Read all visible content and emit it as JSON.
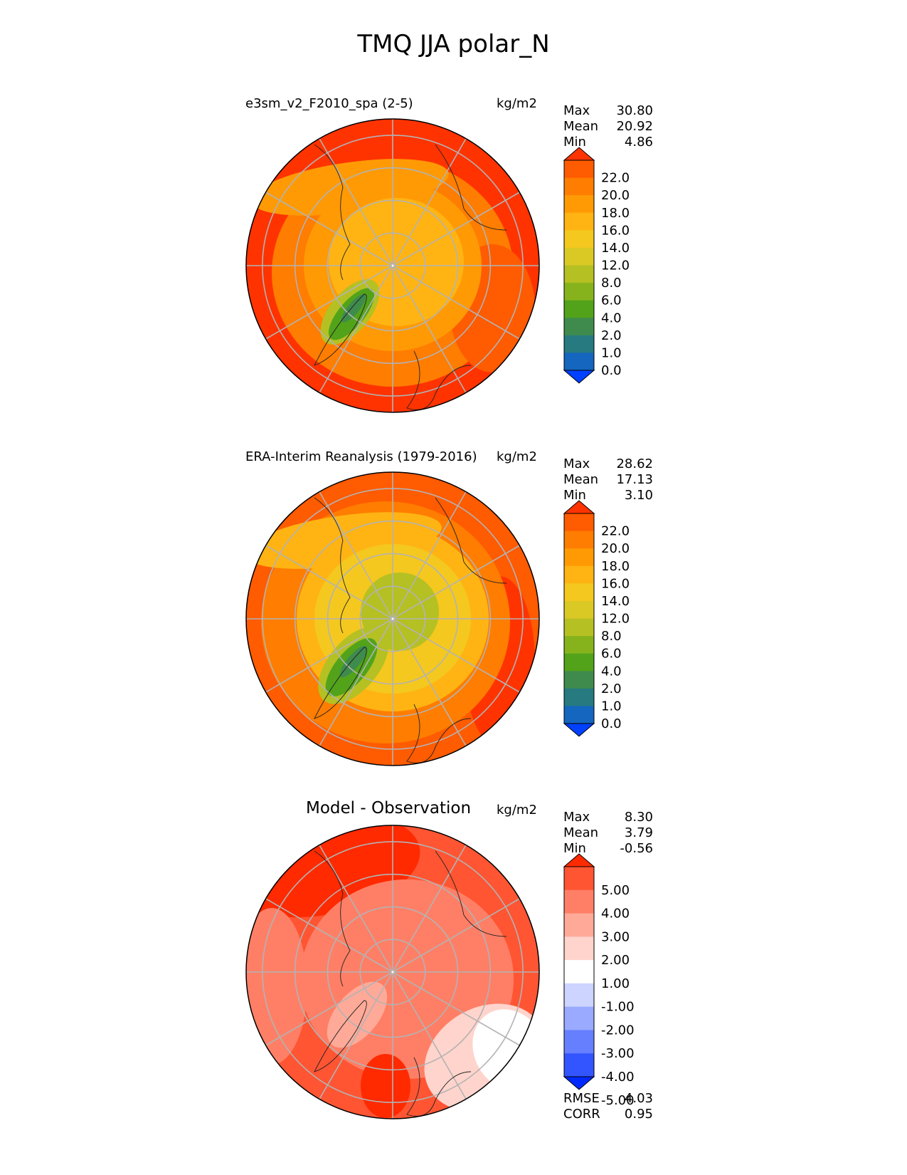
{
  "figure": {
    "title": "TMQ JJA polar_N"
  },
  "panels": [
    {
      "id": "model",
      "title": "e3sm_v2_F2010_spa (2-5)",
      "units": "kg/m2",
      "stats": {
        "max_label": "Max",
        "max": "30.80",
        "mean_label": "Mean",
        "mean": "20.92",
        "min_label": "Min",
        "min": "4.86"
      },
      "colorbar": {
        "labels": [
          "22.0",
          "20.0",
          "18.0",
          "16.0",
          "14.0",
          "12.0",
          "8.0",
          "6.0",
          "4.0",
          "2.0",
          "1.0",
          "0.0"
        ],
        "colors": [
          "#ff3300",
          "#ff5b00",
          "#ff7d00",
          "#ff9a05",
          "#ffb413",
          "#f4c81f",
          "#dac825",
          "#b5c023",
          "#86b31c",
          "#52a31a",
          "#3f8b4d",
          "#267a80",
          "#1466bf",
          "#0040ff"
        ]
      }
    },
    {
      "id": "obs",
      "title": "ERA-Interim Reanalysis (1979-2016)",
      "units": "kg/m2",
      "stats": {
        "max_label": "Max",
        "max": "28.62",
        "mean_label": "Mean",
        "mean": "17.13",
        "min_label": "Min",
        "min": "3.10"
      },
      "colorbar": {
        "labels": [
          "22.0",
          "20.0",
          "18.0",
          "16.0",
          "14.0",
          "12.0",
          "8.0",
          "6.0",
          "4.0",
          "2.0",
          "1.0",
          "0.0"
        ],
        "colors": [
          "#ff3300",
          "#ff5b00",
          "#ff7d00",
          "#ff9a05",
          "#ffb413",
          "#f4c81f",
          "#dac825",
          "#b5c023",
          "#86b31c",
          "#52a31a",
          "#3f8b4d",
          "#267a80",
          "#1466bf",
          "#0040ff"
        ]
      }
    },
    {
      "id": "diff",
      "title": "Model - Observation",
      "units": "kg/m2",
      "stats": {
        "max_label": "Max",
        "max": "8.30",
        "mean_label": "Mean",
        "mean": "3.79",
        "min_label": "Min",
        "min": "-0.56"
      },
      "metrics": {
        "rmse_label": "RMSE",
        "rmse": "4.03",
        "corr_label": "CORR",
        "corr": "0.95"
      },
      "colorbar": {
        "labels": [
          "5.00",
          "4.00",
          "3.00",
          "2.00",
          "1.00",
          "-1.00",
          "-2.00",
          "-3.00",
          "-4.00",
          "-5.00"
        ],
        "colors": [
          "#ff2a00",
          "#ff5533",
          "#ff7f66",
          "#ffaa99",
          "#ffd4cc",
          "#ffffff",
          "#ccd4ff",
          "#99aaff",
          "#667fff",
          "#3355ff",
          "#0029ff"
        ]
      }
    }
  ],
  "chart_data": [
    {
      "type": "heatmap",
      "title": "e3sm_v2_F2010_spa (2-5)",
      "units": "kg/m2",
      "projection": "polar north stereographic",
      "max": 30.8,
      "mean": 20.92,
      "min": 4.86,
      "levels": [
        0,
        1,
        2,
        4,
        6,
        8,
        12,
        14,
        16,
        18,
        20,
        22
      ],
      "latitude_circles": [
        50,
        60,
        70,
        80
      ],
      "longitude_lines_deg": [
        0,
        30,
        60,
        90,
        120,
        150,
        180,
        210,
        240,
        270,
        300,
        330
      ]
    },
    {
      "type": "heatmap",
      "title": "ERA-Interim Reanalysis (1979-2016)",
      "units": "kg/m2",
      "projection": "polar north stereographic",
      "max": 28.62,
      "mean": 17.13,
      "min": 3.1,
      "levels": [
        0,
        1,
        2,
        4,
        6,
        8,
        12,
        14,
        16,
        18,
        20,
        22
      ],
      "latitude_circles": [
        50,
        60,
        70,
        80
      ],
      "longitude_lines_deg": [
        0,
        30,
        60,
        90,
        120,
        150,
        180,
        210,
        240,
        270,
        300,
        330
      ]
    },
    {
      "type": "heatmap",
      "title": "Model - Observation",
      "units": "kg/m2",
      "projection": "polar north stereographic",
      "max": 8.3,
      "mean": 3.79,
      "min": -0.56,
      "rmse": 4.03,
      "corr": 0.95,
      "levels": [
        -5,
        -4,
        -3,
        -2,
        -1,
        1,
        2,
        3,
        4,
        5
      ],
      "latitude_circles": [
        50,
        60,
        70,
        80
      ],
      "longitude_lines_deg": [
        0,
        30,
        60,
        90,
        120,
        150,
        180,
        210,
        240,
        270,
        300,
        330
      ]
    }
  ]
}
